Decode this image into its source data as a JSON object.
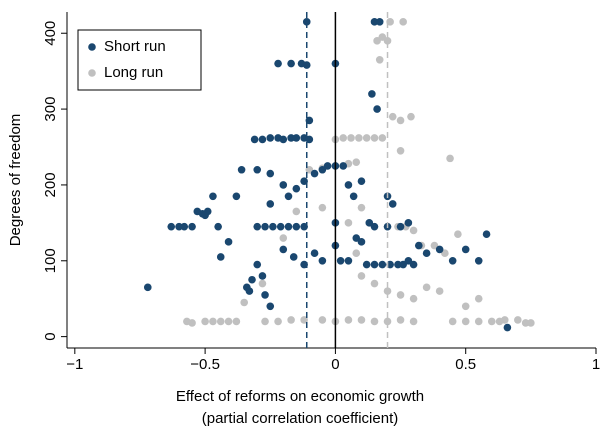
{
  "chart_data": {
    "type": "scatter",
    "xlabel": [
      "Effect of reforms on economic growth",
      "(partial correlation coefficient)"
    ],
    "ylabel": "Degrees of freedom",
    "xlim": [
      -1.03,
      1.0
    ],
    "ylim": [
      -15,
      428
    ],
    "xticks": [
      {
        "value": -1,
        "label": "−1"
      },
      {
        "value": -0.5,
        "label": "−0.5"
      },
      0,
      0.5,
      1
    ],
    "yticks": [
      0,
      100,
      200,
      300,
      400
    ],
    "legend": "top-left",
    "reference_lines": [
      {
        "value": -0.11,
        "color": "#1a476f",
        "style": "dashed"
      },
      {
        "value": 0,
        "color": "#000000",
        "style": "solid"
      },
      {
        "value": 0.2,
        "color": "#c0c0c0",
        "style": "dashed"
      }
    ],
    "series": [
      {
        "name": "Short run",
        "color": "#1a476f",
        "x": [
          -0.72,
          -0.63,
          -0.6,
          -0.58,
          -0.55,
          -0.53,
          -0.51,
          -0.5,
          -0.49,
          -0.47,
          -0.45,
          -0.44,
          -0.41,
          -0.38,
          -0.36,
          -0.34,
          -0.33,
          -0.32,
          -0.3,
          -0.28,
          -0.27,
          -0.25,
          -0.31,
          -0.28,
          -0.25,
          -0.22,
          -0.2,
          -0.17,
          -0.15,
          -0.12,
          -0.1,
          -0.3,
          -0.27,
          -0.24,
          -0.21,
          -0.18,
          -0.15,
          -0.12,
          -0.22,
          -0.17,
          -0.13,
          -0.11,
          -0.11,
          -0.1,
          -0.25,
          -0.2,
          -0.18,
          -0.15,
          -0.12,
          -0.08,
          -0.05,
          -0.03,
          0.0,
          0.03,
          -0.3,
          -0.25,
          -0.2,
          -0.16,
          -0.12,
          -0.08,
          -0.05,
          0.0,
          0.0,
          0.0,
          0.02,
          0.05,
          0.08,
          0.1,
          0.13,
          0.15,
          0.17,
          0.14,
          0.16,
          0.12,
          0.15,
          0.18,
          0.21,
          0.24,
          0.26,
          0.28,
          0.3,
          0.15,
          0.2,
          0.25,
          0.28,
          0.32,
          0.35,
          0.4,
          0.45,
          0.5,
          0.55,
          0.58,
          0.66,
          0.05,
          0.1,
          0.07,
          0.2,
          0.22
        ],
        "values": [
          65,
          145,
          145,
          145,
          145,
          165,
          162,
          160,
          165,
          185,
          145,
          105,
          125,
          185,
          220,
          65,
          60,
          75,
          95,
          80,
          55,
          40,
          260,
          260,
          262,
          262,
          260,
          262,
          262,
          262,
          260,
          145,
          145,
          145,
          145,
          145,
          145,
          145,
          360,
          360,
          360,
          358,
          415,
          285,
          175,
          200,
          185,
          195,
          205,
          215,
          220,
          225,
          225,
          225,
          220,
          215,
          115,
          105,
          95,
          110,
          100,
          120,
          150,
          360,
          100,
          100,
          130,
          125,
          150,
          415,
          415,
          320,
          300,
          95,
          95,
          95,
          95,
          95,
          95,
          100,
          95,
          145,
          145,
          145,
          150,
          120,
          110,
          115,
          100,
          115,
          100,
          135,
          12,
          200,
          205,
          185,
          185,
          175
        ]
      },
      {
        "name": "Long run",
        "color": "#c0c0c0",
        "x": [
          -0.57,
          -0.55,
          -0.5,
          -0.47,
          -0.44,
          -0.41,
          -0.38,
          -0.27,
          -0.22,
          -0.17,
          -0.12,
          -0.05,
          0.0,
          0.05,
          0.1,
          0.15,
          0.2,
          0.25,
          0.3,
          0.45,
          0.5,
          0.55,
          0.6,
          0.65,
          0.7,
          0.73,
          0.75,
          0.0,
          0.03,
          0.06,
          0.09,
          0.12,
          0.15,
          0.18,
          0.16,
          0.18,
          0.2,
          0.21,
          0.26,
          0.17,
          0.22,
          0.25,
          0.29,
          0.25,
          -0.1,
          -0.05,
          0.0,
          0.05,
          0.08,
          0.2,
          0.24,
          0.27,
          0.3,
          0.33,
          0.38,
          0.42,
          0.47,
          0.44,
          0.1,
          0.15,
          0.2,
          0.25,
          0.3,
          0.35,
          0.4,
          -0.35,
          -0.28,
          -0.2,
          -0.15,
          -0.05,
          0.05,
          0.1,
          0.08,
          0.5,
          0.55,
          0.63
        ],
        "values": [
          20,
          18,
          20,
          20,
          20,
          20,
          20,
          20,
          20,
          22,
          22,
          22,
          20,
          22,
          22,
          20,
          20,
          22,
          20,
          20,
          20,
          20,
          20,
          22,
          22,
          18,
          18,
          260,
          262,
          262,
          262,
          262,
          262,
          262,
          390,
          395,
          390,
          415,
          415,
          365,
          290,
          285,
          290,
          245,
          220,
          222,
          225,
          228,
          230,
          145,
          145,
          145,
          140,
          120,
          120,
          110,
          135,
          235,
          80,
          70,
          60,
          55,
          50,
          65,
          60,
          45,
          70,
          130,
          165,
          170,
          150,
          170,
          110,
          40,
          50,
          20
        ]
      }
    ]
  }
}
